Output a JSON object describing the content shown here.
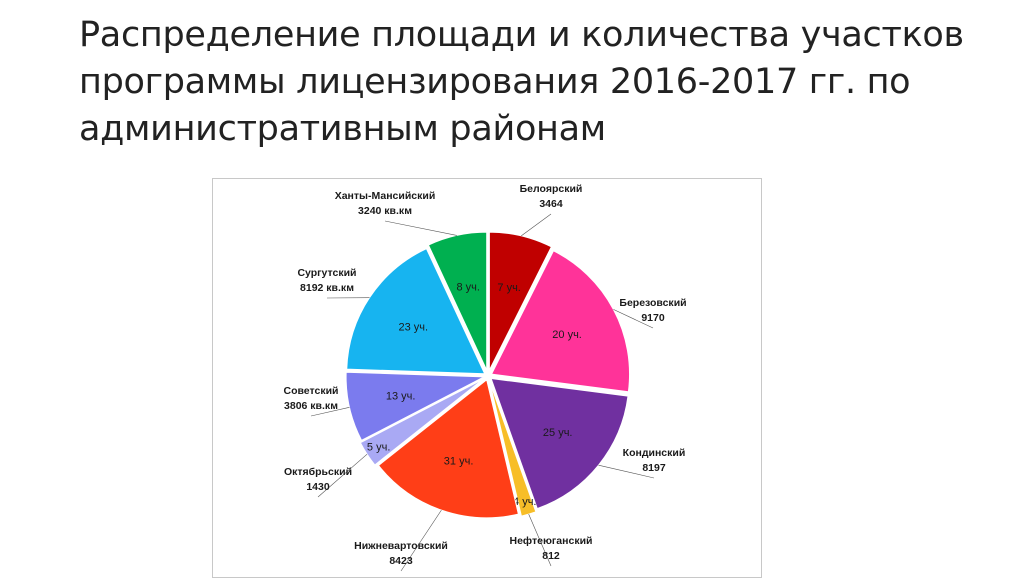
{
  "slide": {
    "title": "Распределение площади и количества участков программы лицензирования 2016-2017 гг. по административным районам"
  },
  "chart_data": {
    "type": "pie",
    "title": "",
    "start_angle_deg": 0,
    "direction": "clockwise",
    "slices": [
      {
        "district": "Белоярский",
        "area_text": "3464",
        "count_label": "7 уч.",
        "count": 7,
        "area": 3464,
        "color": "#C00000"
      },
      {
        "district": "Березовский",
        "area_text": "9170",
        "count_label": "20 уч.",
        "count": 20,
        "area": 9170,
        "color": "#FF3399"
      },
      {
        "district": "Кондинский",
        "area_text": "8197",
        "count_label": "25 уч.",
        "count": 25,
        "area": 8197,
        "color": "#7030A0"
      },
      {
        "district": "Нефтеюганский",
        "area_text": "812",
        "count_label": "4 уч.",
        "count": 4,
        "area": 812,
        "color": "#F7BE28"
      },
      {
        "district": "Нижневартовский",
        "area_text": "8423",
        "count_label": "31 уч.",
        "count": 31,
        "area": 8423,
        "color": "#FF3E17"
      },
      {
        "district": "Октябрьский",
        "area_text": "1430",
        "count_label": "5 уч.",
        "count": 5,
        "area": 1430,
        "color": "#A9A9F4"
      },
      {
        "district": "Советский",
        "area_text": "3806 кв.км",
        "count_label": "13 уч.",
        "count": 13,
        "area": 3806,
        "color": "#7B7BEE"
      },
      {
        "district": "Сургутский",
        "area_text": "8192 кв.км",
        "count_label": "23 уч.",
        "count": 23,
        "area": 8192,
        "color": "#17B4F0"
      },
      {
        "district": "Ханты-Мансийский",
        "area_text": "3240 кв.км",
        "count_label": "8 уч.",
        "count": 8,
        "area": 3240,
        "color": "#00B050"
      }
    ]
  }
}
